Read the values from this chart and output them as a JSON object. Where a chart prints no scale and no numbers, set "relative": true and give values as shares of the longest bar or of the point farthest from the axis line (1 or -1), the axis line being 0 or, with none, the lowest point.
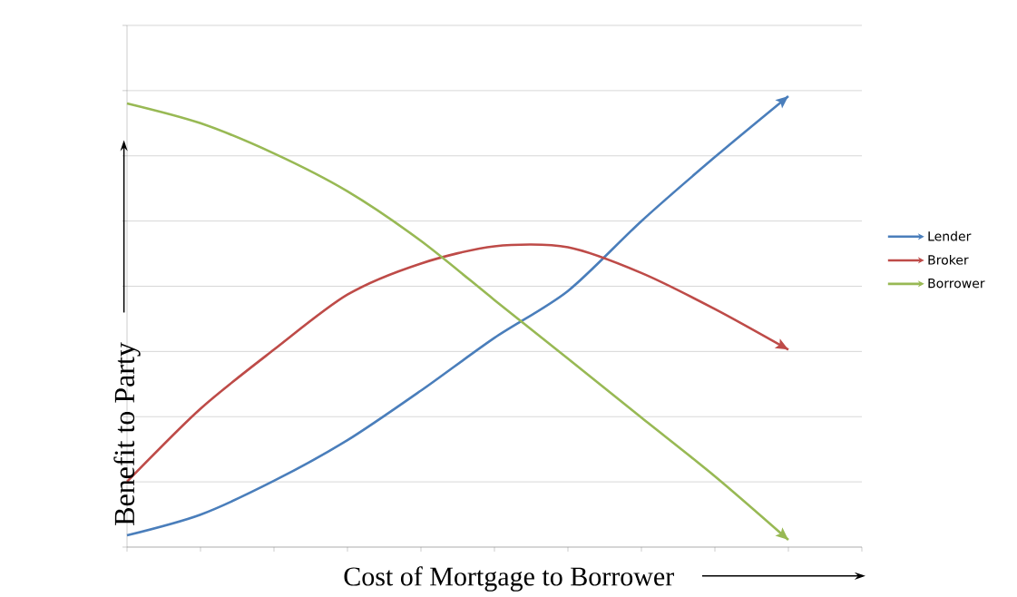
{
  "chart_data": {
    "type": "line",
    "relative": true,
    "xlabel": "Cost of Mortgage to Borrower",
    "ylabel": "Benefit to Party",
    "categories": [
      null,
      null,
      null,
      null,
      null,
      null,
      null,
      null,
      null,
      null
    ],
    "grid": "y",
    "legend": "right",
    "series": [
      {
        "name": "Lender",
        "color": "#4a7ebb",
        "values": [
          0.026,
          0.072,
          0.147,
          0.237,
          0.347,
          0.464,
          0.568,
          0.723,
          0.865,
          1.0
        ]
      },
      {
        "name": "Broker",
        "color": "#be4b48",
        "values": [
          0.145,
          0.307,
          0.438,
          0.56,
          0.629,
          0.667,
          0.665,
          0.608,
          0.528,
          0.438
        ]
      },
      {
        "name": "Borrower",
        "color": "#98b954",
        "values": [
          0.984,
          0.94,
          0.873,
          0.789,
          0.679,
          0.548,
          0.418,
          0.287,
          0.157,
          0.016
        ]
      }
    ]
  }
}
